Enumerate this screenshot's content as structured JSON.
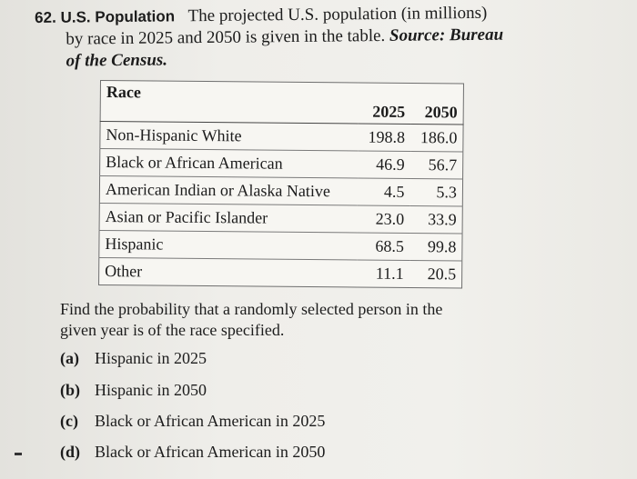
{
  "problem": {
    "number": "62.",
    "topic": "U.S. Population",
    "text_line1": "The projected U.S. population (in millions)",
    "text_line2": "by race in 2025 and 2050 is given in the table.",
    "source_label": "Source: Bureau",
    "source_line2": "of the Census."
  },
  "table": {
    "headers": {
      "race": "Race",
      "year1": "2025",
      "year2": "2050"
    },
    "rows": [
      {
        "race": "Non-Hispanic White",
        "y2025": "198.8",
        "y2050": "186.0"
      },
      {
        "race": "Black or African American",
        "y2025": "46.9",
        "y2050": "56.7"
      },
      {
        "race": "American Indian or Alaska Native",
        "y2025": "4.5",
        "y2050": "5.3"
      },
      {
        "race": "Asian or Pacific Islander",
        "y2025": "23.0",
        "y2050": "33.9"
      },
      {
        "race": "Hispanic",
        "y2025": "68.5",
        "y2050": "99.8"
      },
      {
        "race": "Other",
        "y2025": "11.1",
        "y2050": "20.5"
      }
    ]
  },
  "question": {
    "intro_line1": "Find the probability that a randomly selected person in the",
    "intro_line2": "given year is of the race specified.",
    "parts": [
      {
        "letter": "(a)",
        "text": "Hispanic in 2025"
      },
      {
        "letter": "(b)",
        "text": "Hispanic in 2050"
      },
      {
        "letter": "(c)",
        "text": "Black or African American in 2025"
      },
      {
        "letter": "(d)",
        "text": "Black or African American in 2050"
      }
    ]
  }
}
